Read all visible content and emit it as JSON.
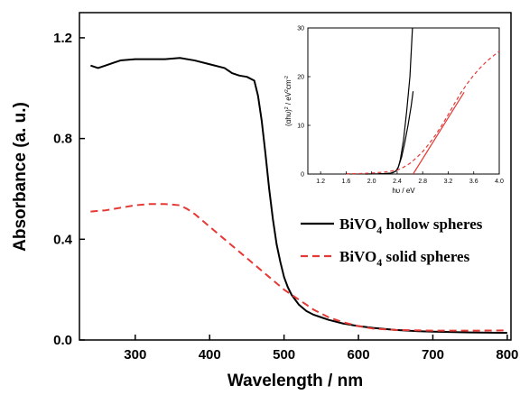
{
  "chart_data": [
    {
      "type": "line",
      "title": "",
      "xlabel": "Wavelength / nm",
      "ylabel": "Absorbance (a. u.)",
      "xlim": [
        225,
        805
      ],
      "ylim": [
        0.0,
        1.3
      ],
      "x_ticks": [
        "300",
        "400",
        "500",
        "600",
        "700",
        "800"
      ],
      "y_ticks": [
        "0.0",
        "0.4",
        "0.8",
        "1.2"
      ],
      "grid": false,
      "legend_position": "right",
      "series": [
        {
          "name": "BiVO4 hollow spheres",
          "legend_main": "BiVO",
          "legend_sub": "4",
          "legend_rest": " hollow spheres",
          "color": "#000000",
          "dash": "solid",
          "x": [
            240,
            250,
            260,
            280,
            300,
            320,
            340,
            360,
            380,
            400,
            420,
            430,
            440,
            450,
            460,
            465,
            470,
            475,
            480,
            485,
            490,
            495,
            500,
            505,
            510,
            520,
            530,
            540,
            550,
            560,
            580,
            600,
            620,
            650,
            680,
            700,
            750,
            800
          ],
          "y": [
            1.09,
            1.08,
            1.09,
            1.11,
            1.115,
            1.115,
            1.115,
            1.12,
            1.11,
            1.095,
            1.08,
            1.06,
            1.05,
            1.045,
            1.03,
            0.97,
            0.87,
            0.74,
            0.6,
            0.48,
            0.38,
            0.31,
            0.25,
            0.21,
            0.18,
            0.14,
            0.115,
            0.1,
            0.09,
            0.08,
            0.065,
            0.055,
            0.048,
            0.04,
            0.035,
            0.033,
            0.03,
            0.028
          ]
        },
        {
          "name": "BiVO4 solid spheres",
          "legend_main": "BiVO",
          "legend_sub": "4",
          "legend_rest": " solid spheres",
          "color": "#e53935",
          "dash": "dashed",
          "x": [
            240,
            260,
            280,
            300,
            320,
            340,
            360,
            370,
            380,
            400,
            420,
            440,
            460,
            480,
            500,
            520,
            540,
            560,
            580,
            600,
            620,
            650,
            700,
            750,
            800
          ],
          "y": [
            0.51,
            0.515,
            0.525,
            0.535,
            0.54,
            0.54,
            0.535,
            0.52,
            0.5,
            0.45,
            0.4,
            0.35,
            0.3,
            0.25,
            0.2,
            0.16,
            0.12,
            0.09,
            0.07,
            0.055,
            0.045,
            0.04,
            0.037,
            0.037,
            0.038
          ]
        }
      ]
    },
    {
      "type": "line",
      "title": "",
      "xlabel": "hυ / eV",
      "ylabel_parts": [
        "(αhυ)",
        "2",
        " / eV",
        "2",
        "cm",
        "-2"
      ],
      "xlim": [
        1.0,
        4.0
      ],
      "ylim": [
        0,
        30
      ],
      "x_ticks": [
        "1.2",
        "1.6",
        "2.0",
        "2.4",
        "2.8",
        "3.2",
        "3.6",
        "4.0"
      ],
      "y_ticks": [
        "0",
        "10",
        "20",
        "30"
      ],
      "grid": false,
      "series": [
        {
          "color": "#000000",
          "dash": "solid",
          "x": [
            1.9,
            2.0,
            2.1,
            2.2,
            2.3,
            2.35,
            2.4,
            2.42,
            2.45,
            2.5,
            2.55,
            2.6,
            2.62,
            2.64
          ],
          "y": [
            0,
            0.03,
            0.05,
            0.1,
            0.2,
            0.4,
            0.8,
            1.5,
            3.0,
            7.0,
            13.0,
            20.0,
            25.0,
            30.0
          ]
        },
        {
          "color": "#000000",
          "dash": "solid",
          "x": [
            2.32,
            2.38,
            2.42,
            2.47,
            2.52,
            2.57,
            2.62,
            2.65
          ],
          "y": [
            0.2,
            0.6,
            1.5,
            3.5,
            6.5,
            10.0,
            14.0,
            17.0
          ]
        },
        {
          "color": "#e53935",
          "dash": "dashed",
          "x": [
            1.6,
            1.8,
            2.0,
            2.2,
            2.4,
            2.5,
            2.6,
            2.7,
            2.8,
            2.9,
            3.0,
            3.1,
            3.2,
            3.3,
            3.4,
            3.5,
            3.6,
            3.7,
            3.8,
            3.9,
            4.0
          ],
          "y": [
            0.05,
            0.1,
            0.2,
            0.4,
            0.8,
            1.4,
            2.2,
            3.3,
            4.6,
            6.2,
            8.0,
            10.0,
            12.2,
            14.5,
            16.7,
            18.6,
            20.3,
            21.8,
            23.1,
            24.2,
            25.2
          ]
        },
        {
          "color": "#e53935",
          "dash": "solid",
          "x": [
            2.65,
            3.45
          ],
          "y": [
            0,
            16.8
          ]
        }
      ]
    }
  ]
}
